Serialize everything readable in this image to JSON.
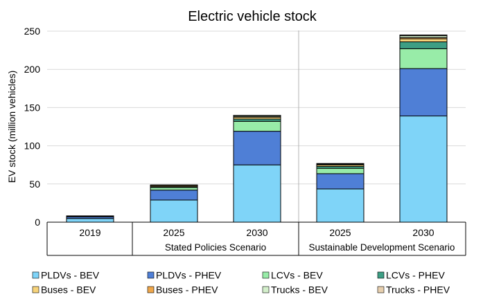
{
  "chart_data": {
    "type": "bar",
    "stacked": true,
    "title": "Electric vehicle stock",
    "ylabel": "EV stock (million vehicles)",
    "xlabel": "",
    "ylim": [
      0,
      250
    ],
    "yticks": [
      0,
      50,
      100,
      150,
      200,
      250
    ],
    "grid": true,
    "legend_position": "bottom",
    "categories": [
      "2019",
      "2025",
      "2030",
      "2025",
      "2030"
    ],
    "groups": [
      {
        "label": "",
        "categories": [
          "2019"
        ]
      },
      {
        "label": "Stated Policies Scenario",
        "categories": [
          "2025",
          "2030"
        ]
      },
      {
        "label": "Sustainable Development Scenario",
        "categories": [
          "2025",
          "2030"
        ]
      }
    ],
    "series": [
      {
        "name": "PLDVs - BEV",
        "color": "#7FD4F8",
        "values": [
          4.8,
          29,
          75,
          43.5,
          139
        ]
      },
      {
        "name": "PLDVs - PHEV",
        "color": "#4F7FD6",
        "values": [
          2.4,
          13,
          44,
          20,
          62
        ]
      },
      {
        "name": "LCVs - BEV",
        "color": "#98ECA8",
        "values": [
          0.3,
          3.5,
          13,
          7,
          26
        ]
      },
      {
        "name": "LCVs - PHEV",
        "color": "#3D9E84",
        "values": [
          0.1,
          1,
          3,
          2.5,
          9
        ]
      },
      {
        "name": "Buses - BEV",
        "color": "#F7D37A",
        "values": [
          0.5,
          1.5,
          2.5,
          2,
          4
        ]
      },
      {
        "name": "Buses - PHEV",
        "color": "#EFA74B",
        "values": [
          0.05,
          0.3,
          0.5,
          0.5,
          1.5
        ]
      },
      {
        "name": "Trucks - BEV",
        "color": "#D3EFCB",
        "values": [
          0.05,
          0.3,
          1.5,
          1,
          2.5
        ]
      },
      {
        "name": "Trucks - PHEV",
        "color": "#E7CFAE",
        "values": [
          0.02,
          0.1,
          0.3,
          0.3,
          1
        ]
      }
    ]
  }
}
